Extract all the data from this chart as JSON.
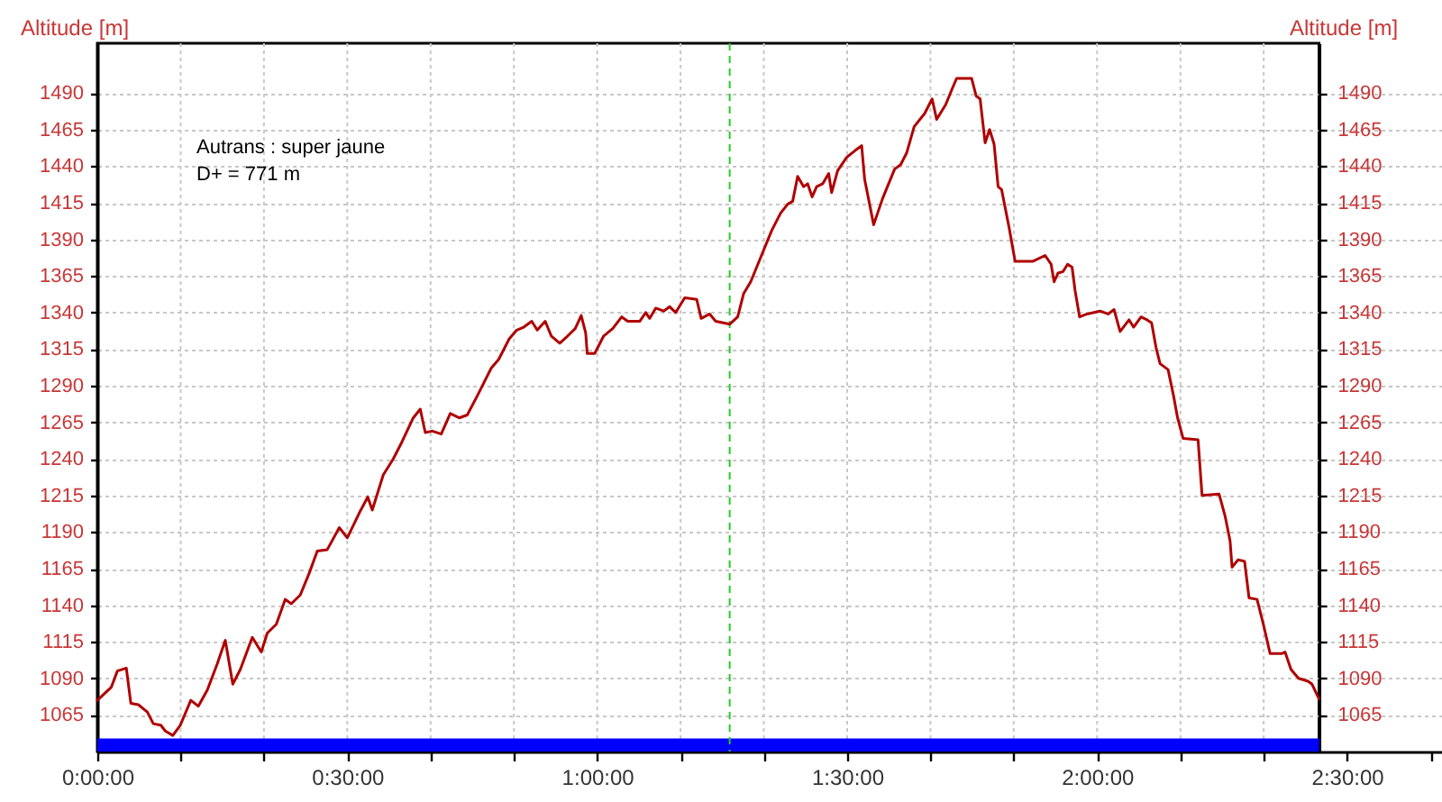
{
  "chart_data": {
    "type": "line",
    "ylabel": "Altitude [m]",
    "y2label": "Altitude [m]",
    "annotations": [
      "Autrans : super jaune",
      "D+ = 771 m"
    ],
    "x": [
      0.0,
      0.028,
      0.04,
      0.058,
      0.067,
      0.082,
      0.1,
      0.112,
      0.127,
      0.136,
      0.151,
      0.166,
      0.187,
      0.202,
      0.22,
      0.24,
      0.256,
      0.271,
      0.286,
      0.31,
      0.328,
      0.34,
      0.358,
      0.376,
      0.388,
      0.406,
      0.424,
      0.44,
      0.46,
      0.484,
      0.5,
      0.524,
      0.541,
      0.55,
      0.572,
      0.592,
      0.61,
      0.632,
      0.646,
      0.656,
      0.67,
      0.688,
      0.706,
      0.724,
      0.74,
      0.76,
      0.788,
      0.803,
      0.824,
      0.839,
      0.853,
      0.869,
      0.88,
      0.896,
      0.908,
      0.925,
      0.941,
      0.956,
      0.968,
      0.977,
      0.98,
      0.995,
      1.013,
      1.031,
      1.049,
      1.061,
      1.085,
      1.097,
      1.105,
      1.117,
      1.133,
      1.145,
      1.157,
      1.175,
      1.199,
      1.208,
      1.225,
      1.237,
      1.265,
      1.281,
      1.293,
      1.307,
      1.331,
      1.349,
      1.367,
      1.381,
      1.391,
      1.401,
      1.413,
      1.421,
      1.43,
      1.439,
      1.451,
      1.463,
      1.469,
      1.481,
      1.499,
      1.517,
      1.529,
      1.535,
      1.553,
      1.571,
      1.595,
      1.607,
      1.619,
      1.634,
      1.655,
      1.67,
      1.679,
      1.697,
      1.709,
      1.719,
      1.749,
      1.758,
      1.766,
      1.776,
      1.785,
      1.794,
      1.802,
      1.809,
      1.824,
      1.836,
      1.872,
      1.896,
      1.908,
      1.914,
      1.922,
      1.932,
      1.941,
      1.95,
      1.956,
      1.965,
      1.98,
      2.006,
      2.022,
      2.034,
      2.046,
      2.064,
      2.073,
      2.088,
      2.1,
      2.109,
      2.118,
      2.126,
      2.142,
      2.153,
      2.161,
      2.172,
      2.202,
      2.21,
      2.244,
      2.256,
      2.266,
      2.27,
      2.282,
      2.295,
      2.304,
      2.32,
      2.334,
      2.346,
      2.37,
      2.376,
      2.388,
      2.403,
      2.422,
      2.43,
      2.444
    ],
    "series": [
      {
        "color": "#b00000",
        "values": [
          1075,
          1084,
          1095,
          1097,
          1073,
          1072,
          1067,
          1059,
          1058,
          1054,
          1051,
          1058,
          1075,
          1071,
          1082,
          1100,
          1116,
          1086,
          1096,
          1118,
          1108,
          1121,
          1127,
          1144,
          1141,
          1147,
          1162,
          1177,
          1178,
          1193,
          1186,
          1203,
          1214,
          1205,
          1229,
          1240,
          1252,
          1268,
          1274,
          1258,
          1259,
          1257,
          1271,
          1268,
          1270,
          1283,
          1302,
          1308,
          1322,
          1328,
          1330,
          1334,
          1328,
          1334,
          1324,
          1319,
          1324,
          1329,
          1338,
          1326,
          1312,
          1312,
          1324,
          1329,
          1337,
          1334,
          1334,
          1340,
          1336,
          1343,
          1341,
          1344,
          1340,
          1350,
          1349,
          1336,
          1339,
          1334,
          1332,
          1337,
          1353,
          1361,
          1381,
          1396,
          1408,
          1414,
          1416,
          1433,
          1426,
          1428,
          1419,
          1426,
          1428,
          1435,
          1422,
          1437,
          1446,
          1451,
          1454,
          1431,
          1400,
          1418,
          1438,
          1441,
          1449,
          1467,
          1476,
          1486,
          1472,
          1482,
          1492,
          1500,
          1500,
          1488,
          1486,
          1456,
          1465,
          1455,
          1426,
          1424,
          1398,
          1375,
          1375,
          1379,
          1373,
          1361,
          1367,
          1368,
          1373,
          1371,
          1355,
          1337,
          1339,
          1341,
          1339,
          1342,
          1327,
          1335,
          1330,
          1337,
          1335,
          1333,
          1316,
          1305,
          1301,
          1283,
          1268,
          1254,
          1253,
          1215,
          1216,
          1201,
          1184,
          1166,
          1171,
          1170,
          1145,
          1144,
          1125,
          1107,
          1107,
          1108,
          1096,
          1090,
          1088,
          1086,
          1076
        ]
      }
    ],
    "xlim": [
      0,
      2.69
    ],
    "xticks": [
      {
        "value": 0,
        "label": "0:00:00"
      },
      {
        "value": 0.1667,
        "label": null
      },
      {
        "value": 0.3333,
        "label": null
      },
      {
        "value": 0.5,
        "label": "0:30:00"
      },
      {
        "value": 0.6667,
        "label": null
      },
      {
        "value": 0.8333,
        "label": null
      },
      {
        "value": 1,
        "label": "1:00:00"
      },
      {
        "value": 1.1667,
        "label": null
      },
      {
        "value": 1.3333,
        "label": null
      },
      {
        "value": 1.5,
        "label": "1:30:00"
      },
      {
        "value": 1.6667,
        "label": null
      },
      {
        "value": 1.8333,
        "label": null
      },
      {
        "value": 2,
        "label": "2:00:00"
      },
      {
        "value": 2.1667,
        "label": null
      },
      {
        "value": 2.3333,
        "label": null
      },
      {
        "value": 2.5,
        "label": "2:30:00"
      },
      {
        "value": 2.6667,
        "label": null
      }
    ],
    "ylim": [
      1040,
      1524
    ],
    "yticks": [
      1065,
      1090,
      1115,
      1140,
      1165,
      1190,
      1215,
      1240,
      1265,
      1290,
      1315,
      1340,
      1365,
      1390,
      1415,
      1440,
      1465,
      1490
    ],
    "y2lim": [
      1040,
      1524
    ],
    "y2ticks": [
      1065,
      1090,
      1115,
      1140,
      1165,
      1190,
      1215,
      1240,
      1265,
      1290,
      1315,
      1340,
      1365,
      1390,
      1415,
      1440,
      1465,
      1490
    ],
    "grid": true,
    "ref_lines": [
      {
        "axis": "x",
        "value": 1.265,
        "color": "#22cc22",
        "line_style": "dashed"
      }
    ],
    "bands": [
      {
        "axis": "y",
        "from": 1040,
        "to": 1049,
        "color": "#0000ff"
      }
    ]
  }
}
